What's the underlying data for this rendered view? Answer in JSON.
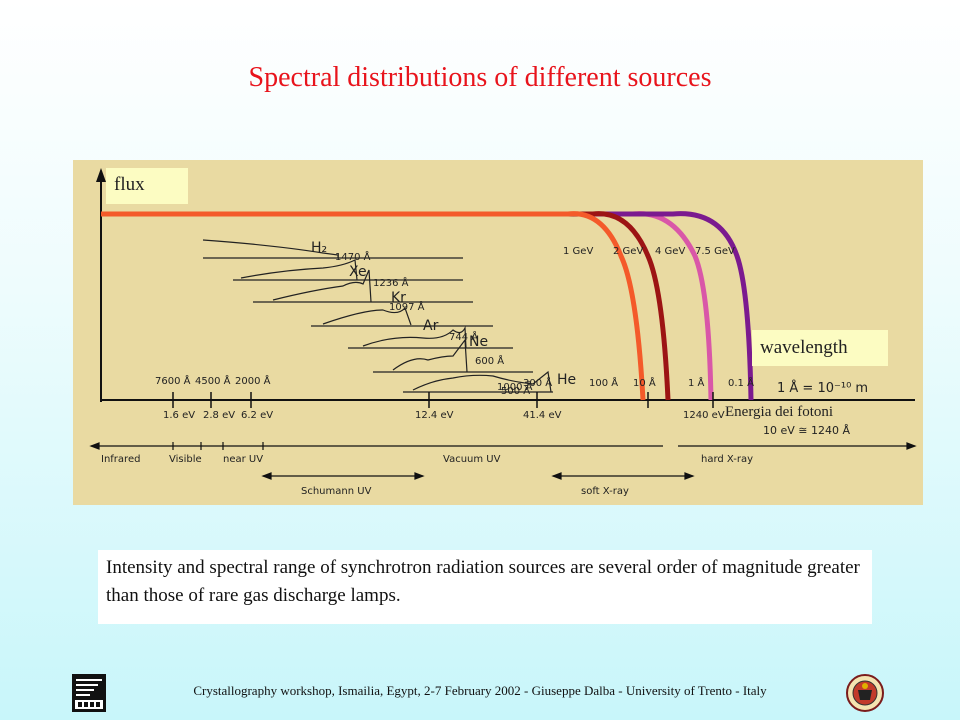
{
  "slide": {
    "title": "Spectral distributions of different sources",
    "caption": "Intensity and spectral range of synchrotron radiation sources are several order of magnitude greater than those of rare gas discharge lamps.",
    "footer": "Crystallography workshop, Ismailia, Egypt, 2-7 February  2002 - Giuseppe Dalba -  University of Trento - Italy"
  },
  "figure": {
    "flux_label": "flux",
    "wavelength_label": "wavelength",
    "energy_axis_title": "Energia dei fotoni",
    "energy_note": "10 eV ≅ 1240 Å",
    "angstrom_note": "1 Å = 10⁻¹⁰ m",
    "gas_labels": [
      "H₂",
      "Xe",
      "Kr",
      "Ar",
      "Ne",
      "He"
    ],
    "gas_wavelengths": [
      "1470 Å",
      "1236 Å",
      "1097 Å",
      "744 Å",
      "600 Å",
      "500 Å"
    ],
    "beam_energies": [
      "1 GeV",
      "2 GeV",
      "4 GeV",
      "7.5 GeV"
    ],
    "wavelength_ticks": [
      "7600 Å",
      "4500 Å",
      "2000 Å",
      "1000 Å",
      "300 Å",
      "100 Å",
      "10 Å",
      "1 Å",
      "0.1 Å"
    ],
    "energy_ticks": [
      "1.6 eV",
      "2.8 eV",
      "6.2 eV",
      "12.4 eV",
      "41.4 eV",
      "1240 eV"
    ],
    "regions": [
      "Infrared",
      "Visible",
      "near UV",
      "Vacuum UV",
      "hard X-ray",
      "Schumann UV",
      "soft X-ray"
    ],
    "colors": {
      "main_flux": "#f2542c",
      "1GeV": "#f45a2a",
      "2GeV": "#9c1414",
      "4GeV": "#d957a8",
      "7.5GeV": "#7b1a8f"
    }
  }
}
